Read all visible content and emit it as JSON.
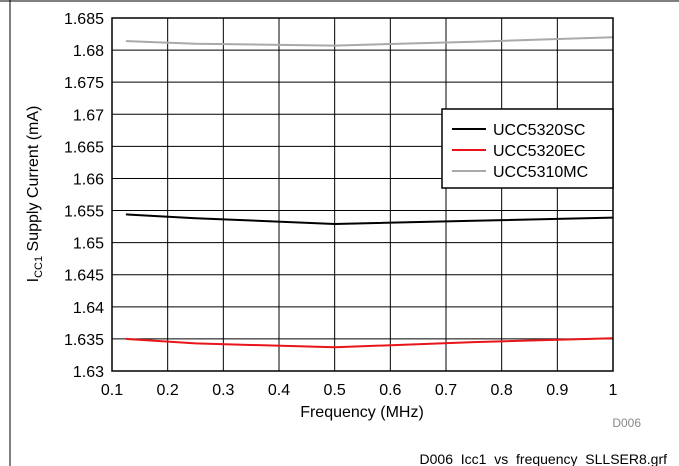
{
  "chart_data": {
    "type": "line",
    "xlabel": "Frequency (MHz)",
    "ylabel_main": "I",
    "ylabel_sub": "CC1",
    "ylabel_rest": " Supply Current (mA)",
    "xlim": [
      0.1,
      1
    ],
    "ylim": [
      1.63,
      1.685
    ],
    "xticks": [
      0.1,
      0.2,
      0.3,
      0.4,
      0.5,
      0.6,
      0.7,
      0.8,
      0.9,
      1
    ],
    "xtick_labels": [
      "0.1",
      "0.2",
      "0.3",
      "0.4",
      "0.5",
      "0.6",
      "0.7",
      "0.8",
      "0.9",
      "1"
    ],
    "yticks": [
      1.63,
      1.635,
      1.64,
      1.645,
      1.65,
      1.655,
      1.66,
      1.665,
      1.67,
      1.675,
      1.68,
      1.685
    ],
    "ytick_labels": [
      "1.63",
      "1.635",
      "1.64",
      "1.645",
      "1.65",
      "1.655",
      "1.66",
      "1.665",
      "1.67",
      "1.675",
      "1.68",
      "1.685"
    ],
    "grid": true,
    "legend_position": "right, upper-middle",
    "series": [
      {
        "name": "UCC5320SC",
        "color": "#000000",
        "x": [
          0.125,
          0.25,
          0.5,
          0.75,
          1.0
        ],
        "y": [
          1.6544,
          1.6538,
          1.6529,
          1.6534,
          1.6539
        ]
      },
      {
        "name": "UCC5320EC",
        "color": "#e8141a",
        "x": [
          0.125,
          0.25,
          0.5,
          0.75,
          1.0
        ],
        "y": [
          1.635,
          1.6343,
          1.6337,
          1.6345,
          1.6351
        ]
      },
      {
        "name": "UCC5310MC",
        "color": "#a9a9a9",
        "x": [
          0.125,
          0.25,
          0.5,
          0.75,
          1.0
        ],
        "y": [
          1.6814,
          1.681,
          1.6807,
          1.6813,
          1.682
        ]
      }
    ],
    "annotations": {
      "figure_id": "D006",
      "filename": "D006_Icc1_vs_frequency_SLLSER8.grf"
    }
  }
}
